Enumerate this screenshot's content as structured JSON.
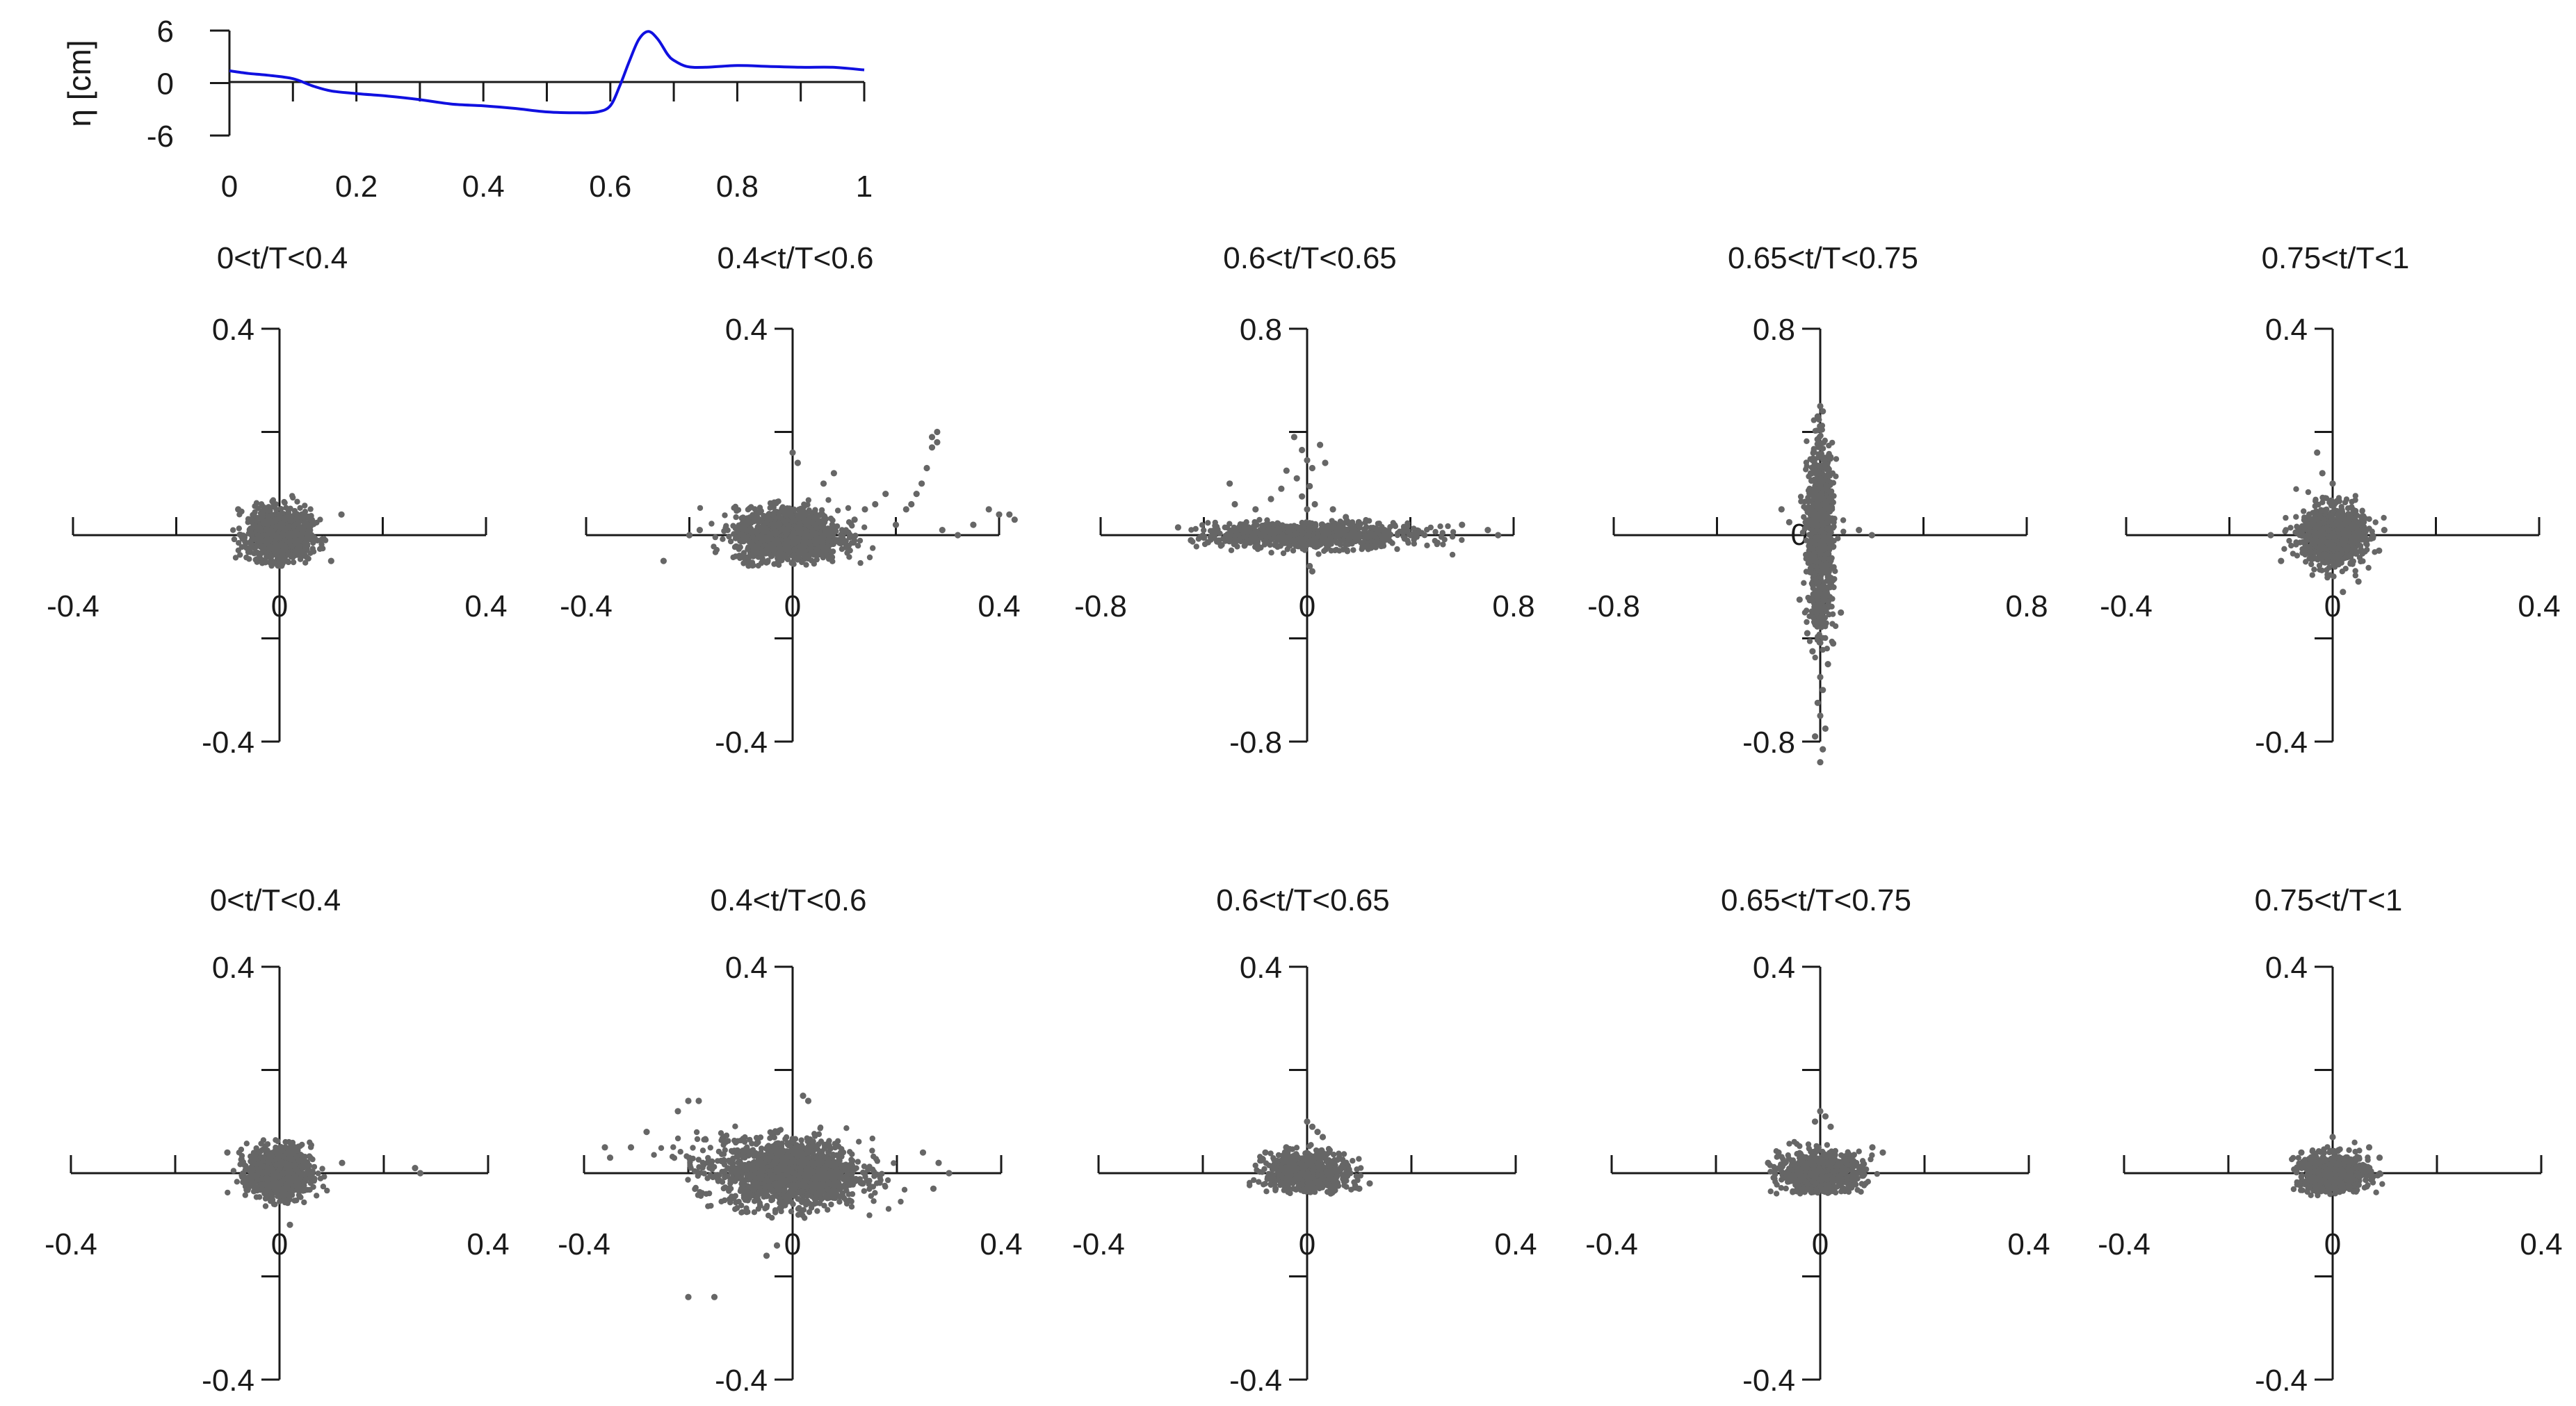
{
  "colors": {
    "wave_line": "#1010e0",
    "scatter_point": "#666666",
    "axis": "#1a1a1a"
  },
  "chart_data": [
    {
      "type": "line",
      "id": "free-surface",
      "ylabel": "η [cm]",
      "xlabel": "",
      "xlim": [
        0,
        1
      ],
      "ylim": [
        -6,
        6
      ],
      "x_ticks": [
        0,
        0.2,
        0.4,
        0.6,
        0.8,
        1
      ],
      "y_ticks": [
        6,
        0,
        -6
      ],
      "x_tick_labels": [
        "0",
        "0.2",
        "0.4",
        "0.6",
        "0.8",
        "1"
      ],
      "y_tick_labels": [
        "6",
        "0",
        "-6"
      ],
      "series": [
        {
          "name": "eta",
          "x": [
            0,
            0.03,
            0.06,
            0.1,
            0.13,
            0.16,
            0.2,
            0.25,
            0.3,
            0.35,
            0.4,
            0.45,
            0.5,
            0.55,
            0.58,
            0.6,
            0.615,
            0.63,
            0.645,
            0.66,
            0.675,
            0.69,
            0.7,
            0.72,
            0.75,
            0.8,
            0.85,
            0.9,
            0.95,
            1.0
          ],
          "y": [
            1.4,
            1.1,
            0.9,
            0.5,
            -0.3,
            -0.9,
            -1.2,
            -1.5,
            -1.9,
            -2.4,
            -2.6,
            -2.9,
            -3.3,
            -3.4,
            -3.3,
            -2.6,
            -0.3,
            2.5,
            5.0,
            5.9,
            5.0,
            3.3,
            2.6,
            1.9,
            1.8,
            2.0,
            1.9,
            1.8,
            1.8,
            1.5
          ]
        }
      ]
    },
    {
      "type": "scatter",
      "id": "top-1",
      "title": "0<t/T<0.4",
      "xlim": [
        -0.4,
        0.4
      ],
      "ylim": [
        -0.4,
        0.4
      ],
      "x_tick_labels": [
        "-0.4",
        "0",
        "0.4"
      ],
      "y_tick_labels": [
        "0.4",
        "0",
        "-0.4"
      ],
      "clusters": [
        {
          "n": 1000,
          "cx": 0,
          "cy": 0,
          "sx": 0.03,
          "sy": 0.025,
          "xmin": -0.09,
          "xmax": 0.13,
          "ymin": -0.06,
          "ymax": 0.09
        }
      ],
      "points": [
        [
          0.12,
          0.04
        ],
        [
          -0.08,
          0.05
        ],
        [
          0.1,
          -0.05
        ]
      ]
    },
    {
      "type": "scatter",
      "id": "top-2",
      "title": "0.4<t/T<0.6",
      "xlim": [
        -0.4,
        0.4
      ],
      "ylim": [
        -0.4,
        0.4
      ],
      "x_tick_labels": [
        "-0.4",
        "0",
        "0.4"
      ],
      "y_tick_labels": [
        "0.4",
        "0",
        "-0.4"
      ],
      "clusters": [
        {
          "n": 1400,
          "cx": -0.01,
          "cy": 0,
          "sx": 0.05,
          "sy": 0.025,
          "xmin": -0.2,
          "xmax": 0.18,
          "ymin": -0.06,
          "ymax": 0.08
        }
      ],
      "points": [
        [
          0.2,
          0.02
        ],
        [
          0.22,
          0.05
        ],
        [
          0.23,
          0.06
        ],
        [
          0.24,
          0.08
        ],
        [
          0.25,
          0.1
        ],
        [
          0.26,
          0.13
        ],
        [
          0.27,
          0.17
        ],
        [
          0.28,
          0.2
        ],
        [
          0.27,
          0.19
        ],
        [
          0.28,
          0.18
        ],
        [
          0.29,
          0.01
        ],
        [
          0.32,
          0.0
        ],
        [
          0.35,
          0.02
        ],
        [
          0.38,
          0.05
        ],
        [
          0.4,
          0.04
        ],
        [
          0.42,
          0.04
        ],
        [
          0.43,
          0.03
        ],
        [
          0.12,
          0.03
        ],
        [
          0.14,
          0.05
        ],
        [
          0.16,
          0.06
        ],
        [
          0.18,
          0.08
        ],
        [
          0.0,
          0.16
        ],
        [
          0.01,
          0.14
        ],
        [
          -0.25,
          -0.05
        ],
        [
          -0.18,
          0.01
        ],
        [
          -0.2,
          0.0
        ],
        [
          0.06,
          0.1
        ],
        [
          0.08,
          0.12
        ]
      ]
    },
    {
      "type": "scatter",
      "id": "top-3",
      "title": "0.6<t/T<0.65",
      "xlim": [
        -0.8,
        0.8
      ],
      "ylim": [
        -0.8,
        0.8
      ],
      "x_tick_labels": [
        "-0.8",
        "0",
        "0.8"
      ],
      "y_tick_labels": [
        "0.8",
        "0",
        "-0.8"
      ],
      "clusters": [
        {
          "n": 900,
          "cx": 0.0,
          "cy": 0.0,
          "sx": 0.22,
          "sy": 0.025,
          "xmin": -0.45,
          "xmax": 0.72,
          "ymin": -0.1,
          "ymax": 0.06
        }
      ],
      "points": [
        [
          -0.05,
          0.38
        ],
        [
          -0.02,
          0.33
        ],
        [
          0.0,
          0.29
        ],
        [
          0.02,
          0.26
        ],
        [
          -0.04,
          0.22
        ],
        [
          0.01,
          0.19
        ],
        [
          -0.02,
          0.15
        ],
        [
          0.03,
          0.12
        ],
        [
          0.0,
          0.1
        ],
        [
          0.05,
          0.35
        ],
        [
          0.07,
          0.28
        ],
        [
          -0.08,
          0.25
        ],
        [
          -0.1,
          0.18
        ],
        [
          -0.14,
          0.14
        ],
        [
          -0.2,
          0.1
        ],
        [
          -0.3,
          0.2
        ],
        [
          -0.28,
          0.12
        ],
        [
          0.1,
          0.1
        ],
        [
          0.15,
          0.07
        ],
        [
          0.2,
          0.05
        ],
        [
          0.3,
          0.02
        ],
        [
          0.6,
          0.04
        ],
        [
          0.7,
          0.02
        ],
        [
          0.74,
          0.0
        ],
        [
          -0.5,
          0.03
        ],
        [
          -0.45,
          -0.02
        ],
        [
          0.01,
          -0.12
        ],
        [
          0.02,
          -0.14
        ]
      ]
    },
    {
      "type": "scatter",
      "id": "top-4",
      "title": "0.65<t/T<0.75",
      "xlim": [
        -0.8,
        0.8
      ],
      "ylim": [
        -0.8,
        0.8
      ],
      "x_tick_labels": [
        "-0.8",
        "0",
        "0.8"
      ],
      "y_tick_labels": [
        "0.8",
        "0",
        "-0.8"
      ],
      "clusters": [
        {
          "n": 1000,
          "cx": 0.0,
          "cy": 0.0,
          "sx": 0.025,
          "sy": 0.17,
          "xmin": -0.09,
          "xmax": 0.11,
          "ymin": -0.5,
          "ymax": 0.45
        }
      ],
      "points": [
        [
          0.0,
          -0.55
        ],
        [
          0.01,
          -0.6
        ],
        [
          -0.01,
          -0.65
        ],
        [
          0.0,
          -0.7
        ],
        [
          0.02,
          -0.75
        ],
        [
          -0.02,
          -0.78
        ],
        [
          0.01,
          -0.83
        ],
        [
          0.0,
          -0.88
        ],
        [
          0.03,
          -0.5
        ],
        [
          -0.03,
          -0.45
        ],
        [
          0.05,
          -0.42
        ],
        [
          -0.05,
          -0.38
        ],
        [
          0.01,
          0.48
        ],
        [
          0.0,
          0.5
        ],
        [
          -0.01,
          0.46
        ],
        [
          0.2,
          0.0
        ],
        [
          0.15,
          0.02
        ],
        [
          -0.12,
          0.05
        ],
        [
          -0.15,
          0.1
        ],
        [
          0.08,
          -0.3
        ],
        [
          -0.08,
          -0.25
        ]
      ]
    },
    {
      "type": "scatter",
      "id": "top-5",
      "title": "0.75<t/T<1",
      "xlim": [
        -0.4,
        0.4
      ],
      "ylim": [
        -0.4,
        0.4
      ],
      "x_tick_labels": [
        "-0.4",
        "0",
        "0.4"
      ],
      "y_tick_labels": [
        "0.4",
        "0",
        "-0.4"
      ],
      "clusters": [
        {
          "n": 1000,
          "cx": 0,
          "cy": 0,
          "sx": 0.03,
          "sy": 0.028,
          "xmin": -0.1,
          "xmax": 0.1,
          "ymin": -0.1,
          "ymax": 0.1
        }
      ],
      "points": [
        [
          -0.03,
          0.16
        ],
        [
          -0.02,
          0.12
        ],
        [
          0.0,
          0.1
        ],
        [
          0.1,
          0.01
        ],
        [
          0.09,
          -0.03
        ],
        [
          -0.12,
          0.0
        ],
        [
          -0.1,
          -0.05
        ],
        [
          0.02,
          -0.11
        ],
        [
          0.05,
          -0.09
        ]
      ]
    },
    {
      "type": "scatter",
      "id": "bottom-1",
      "title": "0<t/T<0.4",
      "xlim": [
        -0.4,
        0.4
      ],
      "ylim": [
        -0.4,
        0.4
      ],
      "x_tick_labels": [
        "-0.4",
        "0",
        "0.4"
      ],
      "y_tick_labels": [
        "0.4",
        "0",
        "-0.4"
      ],
      "clusters": [
        {
          "n": 900,
          "cx": 0,
          "cy": 0,
          "sx": 0.03,
          "sy": 0.025,
          "xmin": -0.1,
          "xmax": 0.11,
          "ymin": -0.07,
          "ymax": 0.08
        }
      ],
      "points": [
        [
          0.26,
          0.01
        ],
        [
          0.27,
          0.0
        ],
        [
          0.12,
          0.02
        ],
        [
          -0.1,
          0.04
        ],
        [
          0.02,
          -0.1
        ]
      ]
    },
    {
      "type": "scatter",
      "id": "bottom-2",
      "title": "0.4<t/T<0.6",
      "xlim": [
        -0.4,
        0.4
      ],
      "ylim": [
        -0.4,
        0.4
      ],
      "x_tick_labels": [
        "-0.4",
        "0",
        "0.4"
      ],
      "y_tick_labels": [
        "0.4",
        "0",
        "-0.4"
      ],
      "clusters": [
        {
          "n": 1500,
          "cx": 0.0,
          "cy": 0.0,
          "sx": 0.065,
          "sy": 0.032,
          "xmin": -0.25,
          "xmax": 0.25,
          "ymin": -0.09,
          "ymax": 0.1
        },
        {
          "n": 80,
          "cx": -0.15,
          "cy": 0.02,
          "sx": 0.05,
          "sy": 0.035,
          "xmin": -0.33,
          "xmax": -0.05,
          "ymin": -0.07,
          "ymax": 0.14
        }
      ],
      "points": [
        [
          -0.2,
          0.14
        ],
        [
          -0.18,
          0.14
        ],
        [
          -0.22,
          0.12
        ],
        [
          -0.28,
          0.08
        ],
        [
          -0.31,
          0.05
        ],
        [
          -0.36,
          0.05
        ],
        [
          -0.35,
          0.03
        ],
        [
          -0.2,
          -0.24
        ],
        [
          -0.15,
          -0.24
        ],
        [
          -0.05,
          -0.16
        ],
        [
          -0.03,
          -0.14
        ],
        [
          0.03,
          0.14
        ],
        [
          0.02,
          0.15
        ],
        [
          0.25,
          0.04
        ],
        [
          0.28,
          0.02
        ],
        [
          0.3,
          0.0
        ],
        [
          0.27,
          -0.03
        ],
        [
          -0.12,
          -0.05
        ]
      ]
    },
    {
      "type": "scatter",
      "id": "bottom-3",
      "title": "0.6<t/T<0.65",
      "xlim": [
        -0.4,
        0.4
      ],
      "ylim": [
        -0.4,
        0.4
      ],
      "x_tick_labels": [
        "-0.4",
        "0",
        "0.4"
      ],
      "y_tick_labels": [
        "0.4",
        "0",
        "-0.4"
      ],
      "clusters": [
        {
          "n": 700,
          "cx": 0.0,
          "cy": 0.0,
          "sx": 0.04,
          "sy": 0.02,
          "xmin": -0.12,
          "xmax": 0.12,
          "ymin": -0.04,
          "ymax": 0.07
        }
      ],
      "points": [
        [
          0.0,
          0.1
        ],
        [
          0.01,
          0.09
        ],
        [
          0.02,
          0.08
        ],
        [
          0.03,
          0.07
        ],
        [
          -0.04,
          0.05
        ],
        [
          -0.08,
          0.04
        ],
        [
          0.1,
          -0.03
        ],
        [
          0.12,
          -0.02
        ]
      ]
    },
    {
      "type": "scatter",
      "id": "bottom-4",
      "title": "0.65<t/T<0.75",
      "xlim": [
        -0.4,
        0.4
      ],
      "ylim": [
        -0.4,
        0.4
      ],
      "x_tick_labels": [
        "-0.4",
        "0",
        "0.4"
      ],
      "y_tick_labels": [
        "0.4",
        "0",
        "-0.4"
      ],
      "clusters": [
        {
          "n": 800,
          "cx": 0.0,
          "cy": 0.0,
          "sx": 0.04,
          "sy": 0.02,
          "xmin": -0.1,
          "xmax": 0.12,
          "ymin": -0.04,
          "ymax": 0.07
        }
      ],
      "points": [
        [
          0.0,
          0.12
        ],
        [
          0.01,
          0.11
        ],
        [
          -0.01,
          0.1
        ],
        [
          0.02,
          0.09
        ],
        [
          0.1,
          0.05
        ],
        [
          0.12,
          0.04
        ],
        [
          -0.08,
          0.04
        ],
        [
          -0.1,
          0.02
        ]
      ]
    },
    {
      "type": "scatter",
      "id": "bottom-5",
      "title": "0.75<t/T<1",
      "xlim": [
        -0.4,
        0.4
      ],
      "ylim": [
        -0.4,
        0.4
      ],
      "x_tick_labels": [
        "-0.4",
        "0",
        "0.4"
      ],
      "y_tick_labels": [
        "0.4",
        "0",
        "-0.4"
      ],
      "clusters": [
        {
          "n": 800,
          "cx": 0.0,
          "cy": 0.0,
          "sx": 0.035,
          "sy": 0.018,
          "xmin": -0.08,
          "xmax": 0.1,
          "ymin": -0.05,
          "ymax": 0.06
        }
      ],
      "points": [
        [
          0.07,
          0.05
        ],
        [
          0.09,
          0.03
        ],
        [
          -0.06,
          0.04
        ],
        [
          0.0,
          0.07
        ]
      ]
    }
  ]
}
